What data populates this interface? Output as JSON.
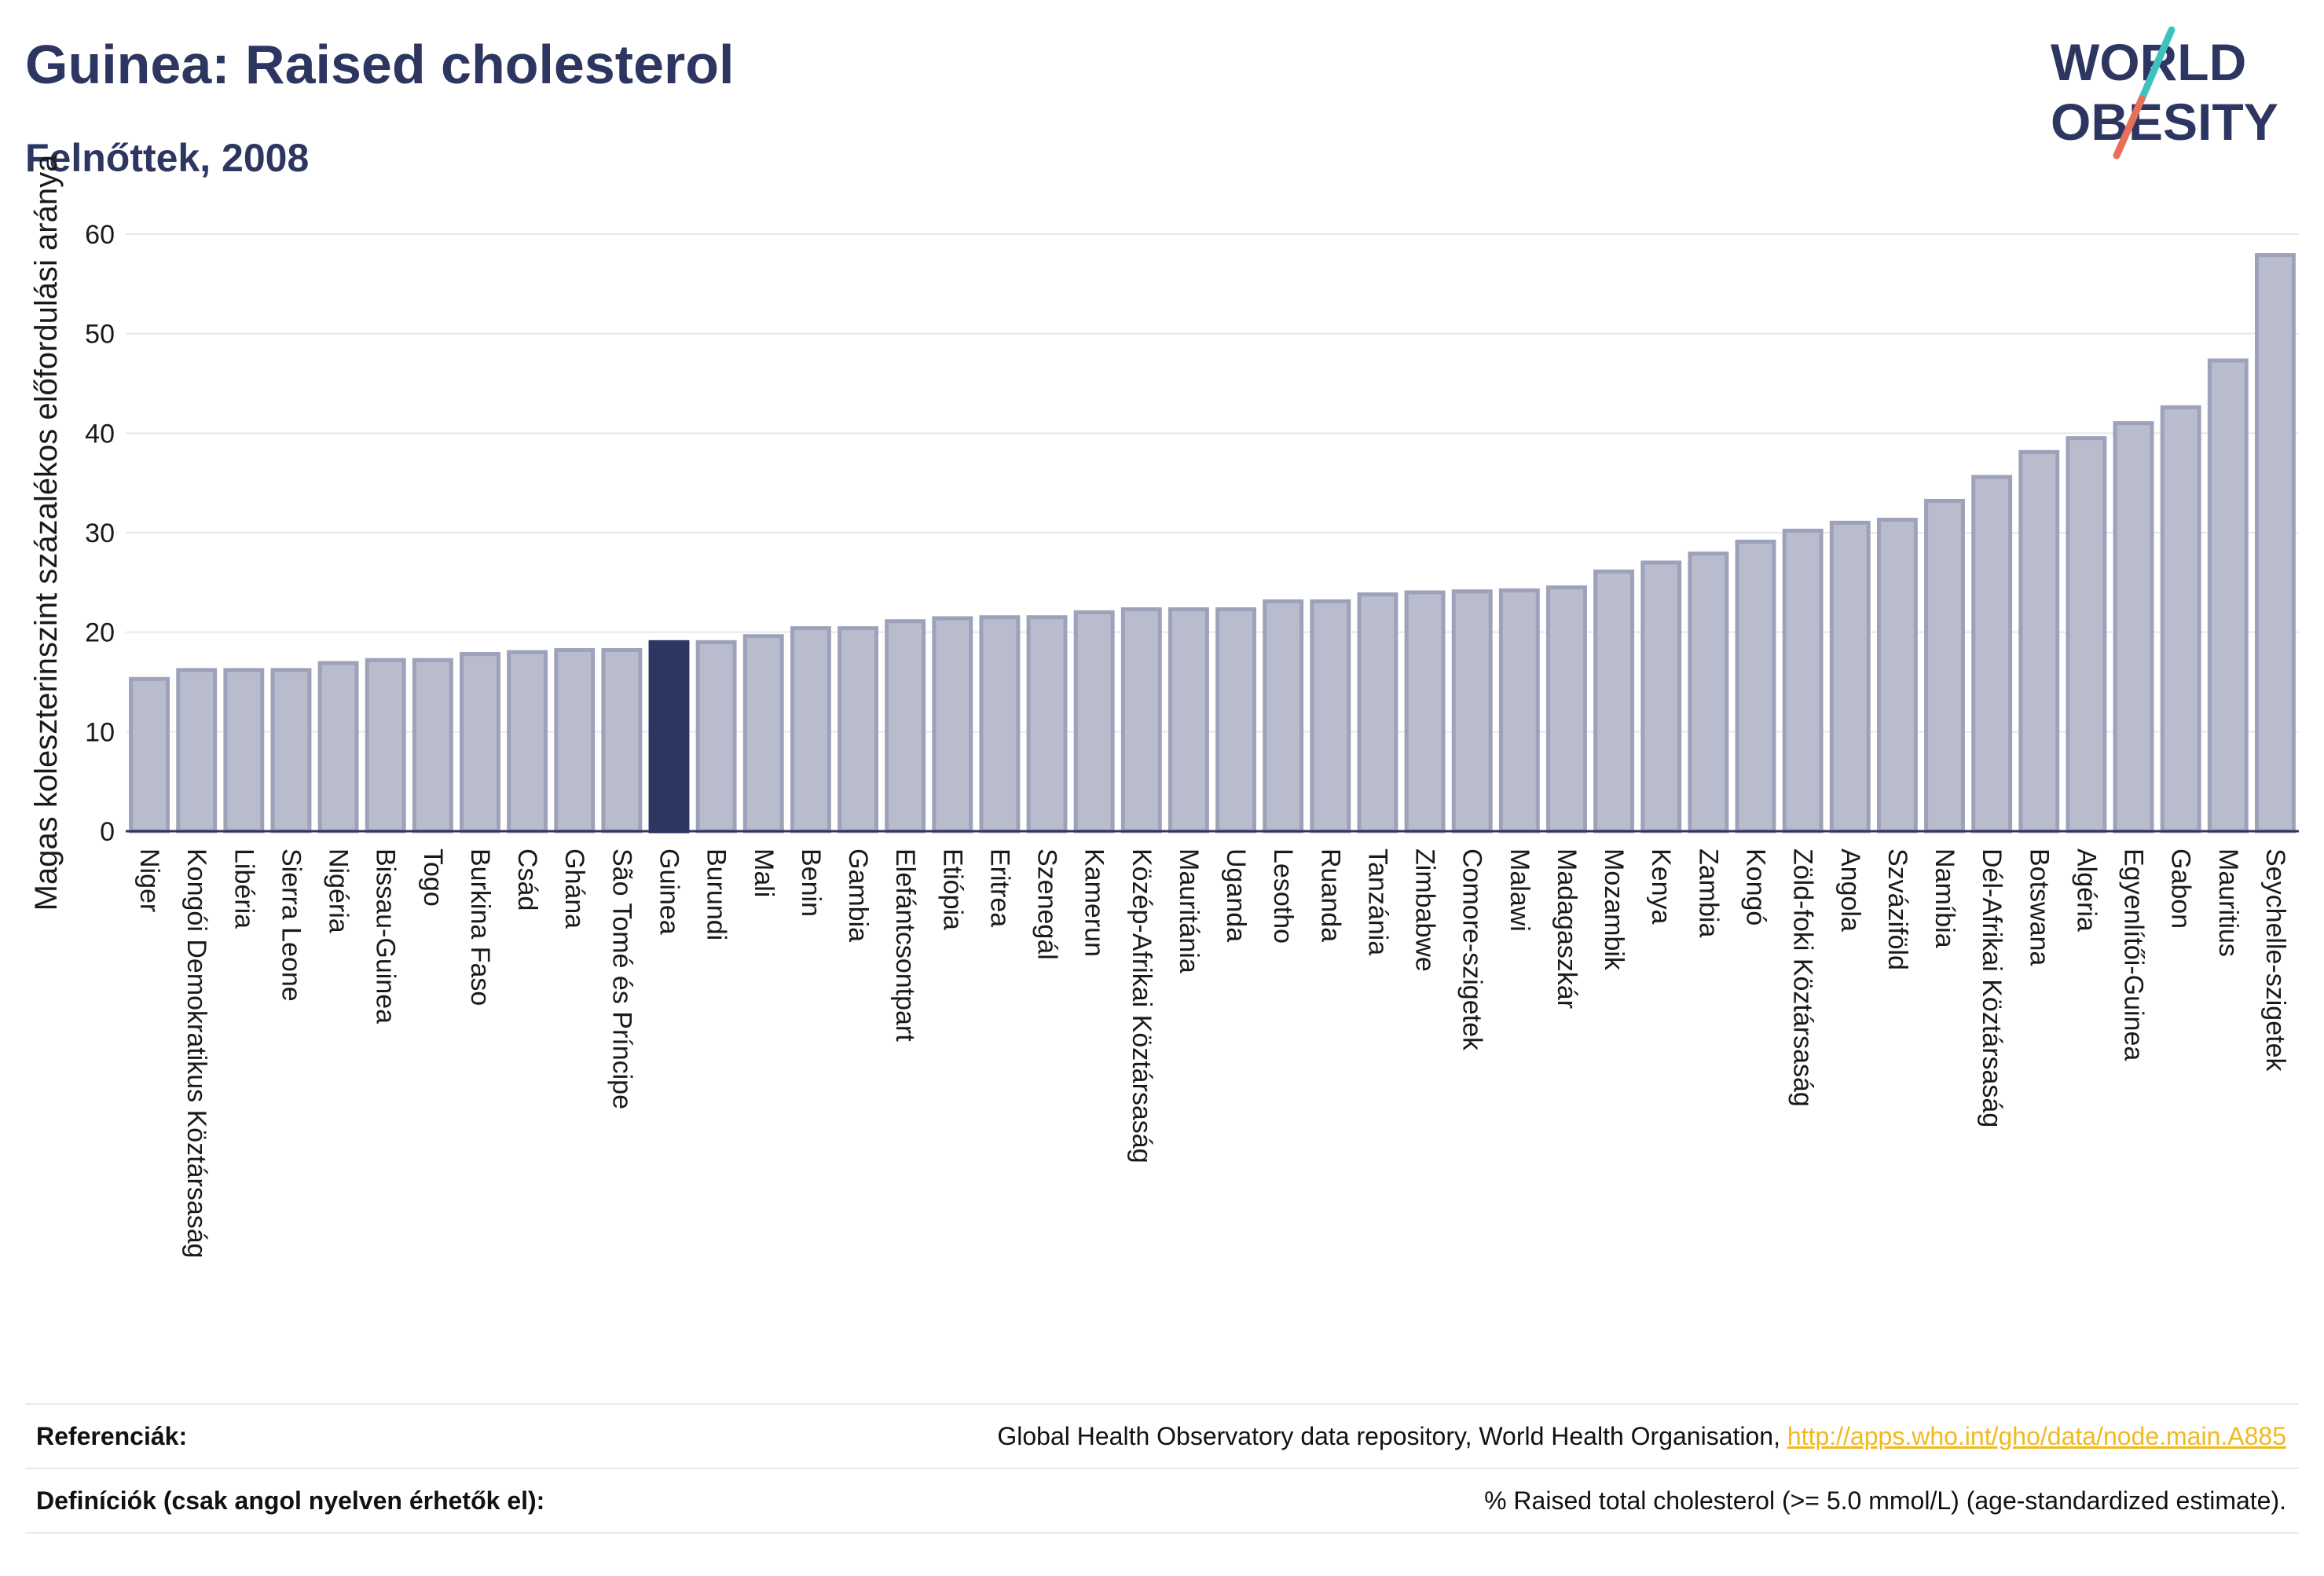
{
  "header": {
    "title": "Guinea: Raised cholesterol",
    "subtitle": "Felnőttek, 2008"
  },
  "logo": {
    "line1": "WORLD",
    "line2": "OBESITY",
    "accent_teal": "#3fc1c0",
    "accent_coral": "#e8705a",
    "text_color": "#2d3660"
  },
  "colors": {
    "bar_default": "#b9bccd",
    "bar_stroke": "#9da1ba",
    "bar_highlight": "#2d3660",
    "grid": "#e6e6ee",
    "baseline": "#2d3660"
  },
  "chart_data": {
    "type": "bar",
    "ylabel": "Magas koleszterinszint százalékos előfordulási aránya",
    "ylim": [
      0,
      60
    ],
    "yticks": [
      0,
      10,
      20,
      30,
      40,
      50,
      60
    ],
    "grid": true,
    "highlight": "Guinea",
    "categories": [
      "Niger",
      "Kongói Demokratikus Köztársaság",
      "Libéria",
      "Sierra Leone",
      "Nigéria",
      "Bissau-Guinea",
      "Togo",
      "Burkina Faso",
      "Csád",
      "Ghána",
      "São Tomé és Príncipe",
      "Guinea",
      "Burundi",
      "Mali",
      "Benin",
      "Gambia",
      "Elefántcsontpart",
      "Etiópia",
      "Eritrea",
      "Szenegál",
      "Kamerun",
      "Közép-Afrikai Köztársaság",
      "Mauritánia",
      "Uganda",
      "Lesotho",
      "Ruanda",
      "Tanzánia",
      "Zimbabwe",
      "Comore-szigetek",
      "Malawi",
      "Madagaszkár",
      "Mozambik",
      "Kenya",
      "Zambia",
      "Kongó",
      "Zöld-foki Köztársaság",
      "Angola",
      "Szváziföld",
      "Namíbia",
      "Dél-Afrikai Köztársaság",
      "Botswana",
      "Algéria",
      "Egyenlítői-Guinea",
      "Gabon",
      "Mauritius",
      "Seychelle-szigetek"
    ],
    "values": [
      15.3,
      16.2,
      16.2,
      16.2,
      16.9,
      17.2,
      17.2,
      17.8,
      18.0,
      18.2,
      18.2,
      19.0,
      19.0,
      19.6,
      20.4,
      20.4,
      21.1,
      21.4,
      21.5,
      21.5,
      22.0,
      22.3,
      22.3,
      22.3,
      23.1,
      23.1,
      23.8,
      24.0,
      24.1,
      24.2,
      24.5,
      26.1,
      27.0,
      27.9,
      29.1,
      30.2,
      31.0,
      31.3,
      33.2,
      35.6,
      38.1,
      39.5,
      41.0,
      42.6,
      47.3,
      57.9
    ]
  },
  "footer": {
    "references_label": "Referenciák:",
    "references_text": "Global Health Observatory data repository, World Health Organisation,",
    "references_link": "http://apps.who.int/gho/data/node.main.A885",
    "definitions_label": "Definíciók (csak angol nyelven érhetők el):",
    "definitions_text": "% Raised total cholesterol (>= 5.0 mmol/L) (age-standardized estimate)."
  }
}
